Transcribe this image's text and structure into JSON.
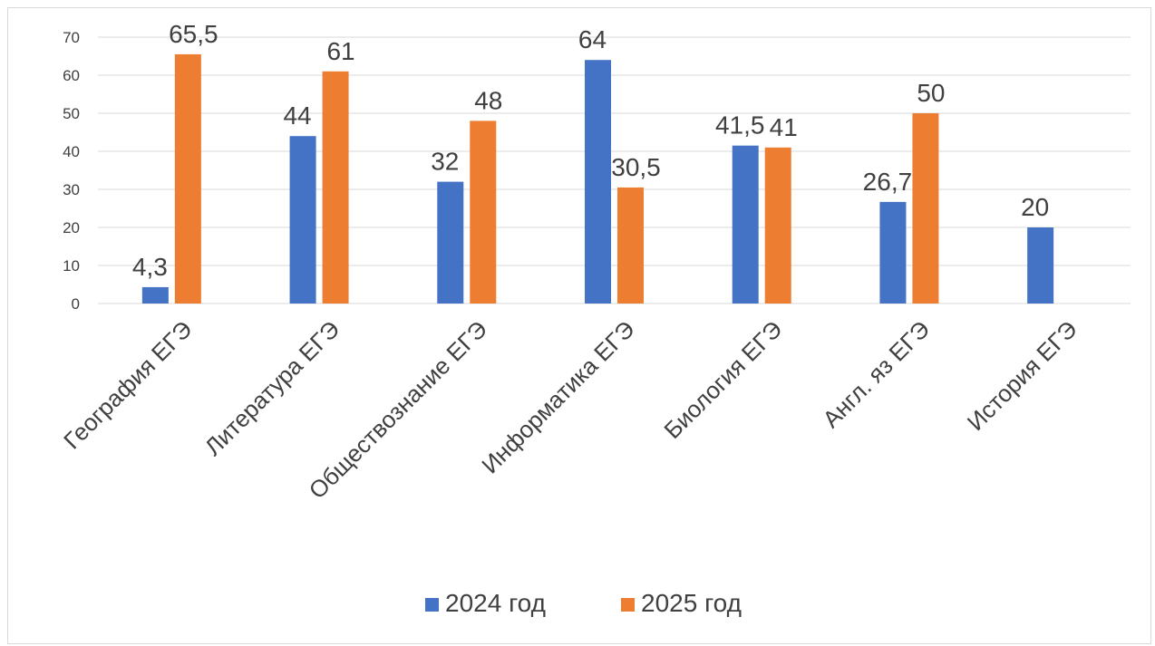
{
  "chart_data": {
    "type": "bar",
    "categories": [
      "География ЕГЭ",
      "Литература ЕГЭ",
      "Обществознание ЕГЭ",
      "Информатика ЕГЭ",
      "Биология ЕГЭ",
      "Англ. яз ЕГЭ",
      "История ЕГЭ"
    ],
    "series": [
      {
        "name": "2024 год",
        "color": "#4472C4",
        "values": [
          4.3,
          44,
          32,
          64,
          41.5,
          26.7,
          20
        ],
        "labels": [
          "4,3",
          "44",
          "32",
          "64",
          "41,5",
          "26,7",
          "20"
        ]
      },
      {
        "name": "2025 год",
        "color": "#ED7D31",
        "values": [
          65.5,
          61,
          48,
          30.5,
          41,
          50,
          null
        ],
        "labels": [
          "65,5",
          "61",
          "48",
          "30,5",
          "41",
          "50",
          ""
        ]
      }
    ],
    "ylim": [
      0,
      70
    ],
    "yticks": [
      "0",
      "10",
      "20",
      "30",
      "40",
      "50",
      "60",
      "70"
    ],
    "grid": true,
    "legend_position": "bottom"
  }
}
